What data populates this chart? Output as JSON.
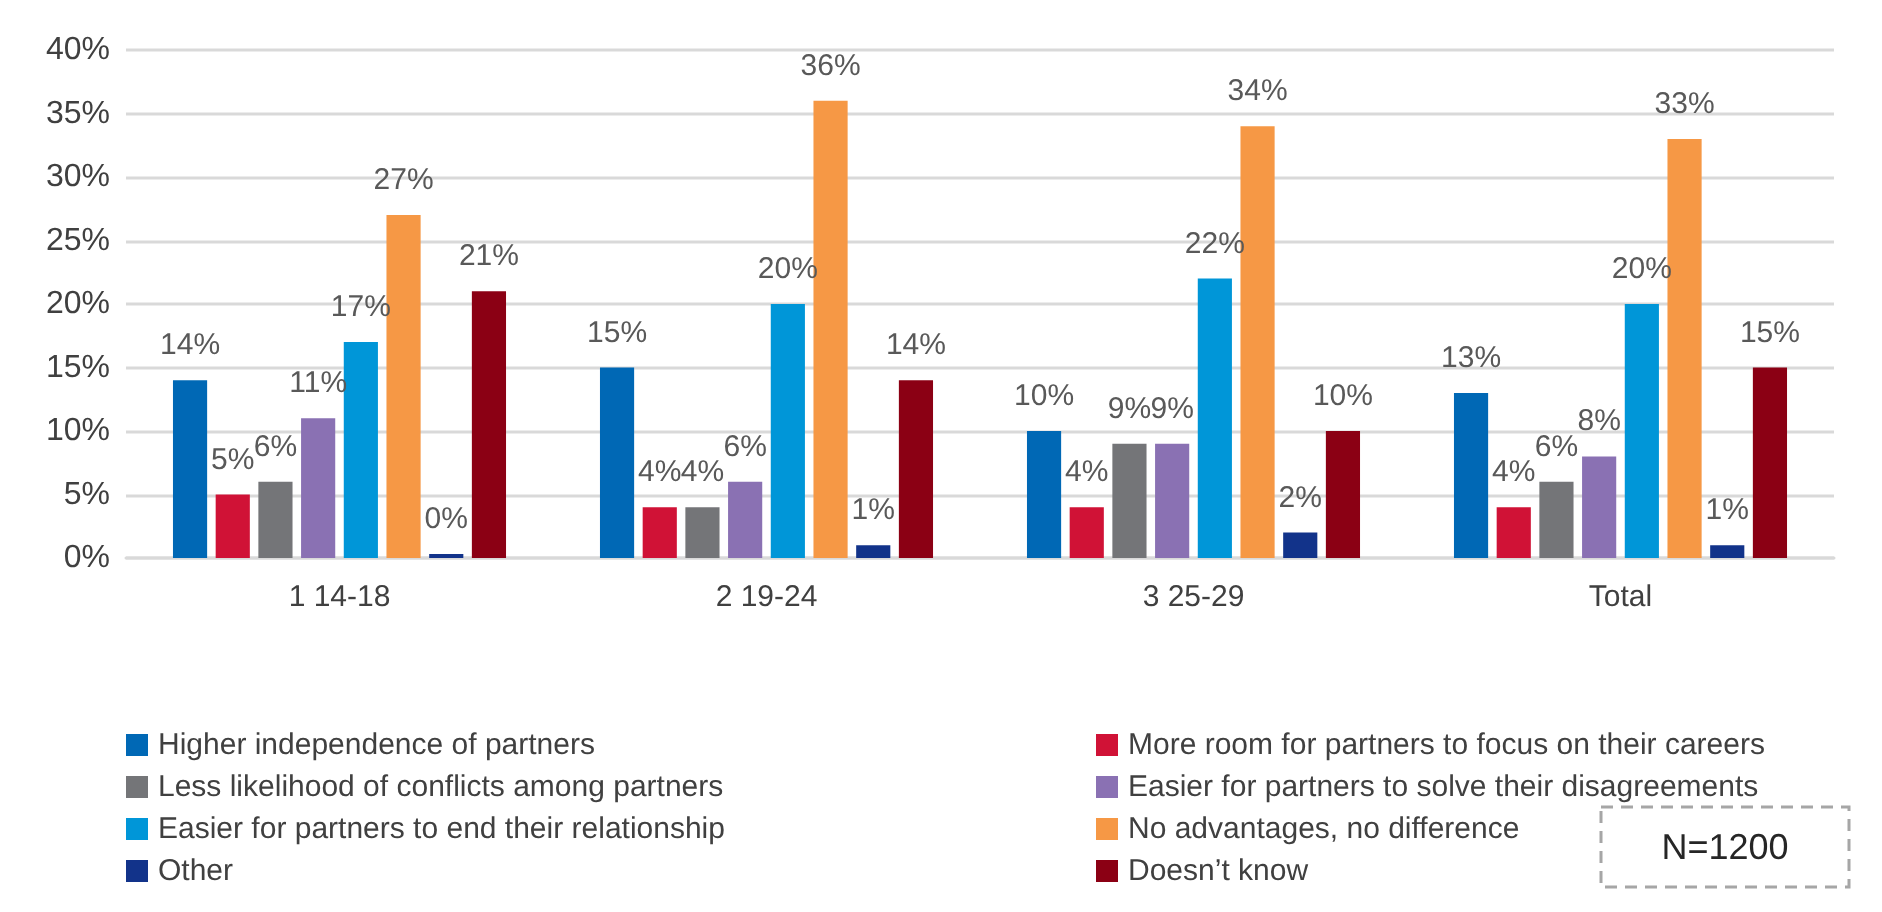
{
  "chart_data": {
    "type": "bar",
    "categories": [
      "1 14-18",
      "2 19-24",
      "3 25-29",
      "Total"
    ],
    "series": [
      {
        "name": "Higher independence of partners",
        "color": "#0068b5",
        "values": [
          14,
          15,
          10,
          13
        ],
        "value_labels": [
          "14%",
          "15%",
          "10%",
          "13%"
        ]
      },
      {
        "name": "More room for partners to focus on their careers",
        "color": "#d01236",
        "values": [
          5,
          4,
          4,
          4
        ],
        "value_labels": [
          "5%",
          "4%",
          "4%",
          "4%"
        ]
      },
      {
        "name": "Less likelihood of conflicts among partners",
        "color": "#747578",
        "values": [
          6,
          4,
          9,
          6
        ],
        "value_labels": [
          "6%",
          "4%",
          "9%",
          "6%"
        ]
      },
      {
        "name": "Easier for partners to solve their disagreements",
        "color": "#8a71b3",
        "values": [
          11,
          6,
          9,
          8
        ],
        "value_labels": [
          "11%",
          "6%",
          "9%",
          "8%"
        ]
      },
      {
        "name": "Easier for partners to end their relationship",
        "color": "#0096d8",
        "values": [
          17,
          20,
          22,
          20
        ],
        "value_labels": [
          "17%",
          "20%",
          "22%",
          "20%"
        ]
      },
      {
        "name": "No advantages, no difference",
        "color": "#f69845",
        "values": [
          27,
          36,
          34,
          33
        ],
        "value_labels": [
          "27%",
          "36%",
          "34%",
          "33%"
        ]
      },
      {
        "name": "Other",
        "color": "#12338a",
        "values": [
          0,
          1,
          2,
          1
        ],
        "value_labels": [
          "0%",
          "1%",
          "2%",
          "1%"
        ]
      },
      {
        "name": "Doesn’t know",
        "color": "#8b0014",
        "values": [
          21,
          14,
          10,
          15
        ],
        "value_labels": [
          "21%",
          "14%",
          "10%",
          "15%"
        ]
      }
    ],
    "ylim": [
      0,
      40
    ],
    "yticks": [
      {
        "value": 0,
        "label": "0%"
      },
      {
        "value": 5,
        "label": "5%"
      },
      {
        "value": 10,
        "label": "10%"
      },
      {
        "value": 15,
        "label": "15%"
      },
      {
        "value": 20,
        "label": "20%"
      },
      {
        "value": 25,
        "label": "25%"
      },
      {
        "value": 30,
        "label": "30%"
      },
      {
        "value": 35,
        "label": "35%"
      },
      {
        "value": 40,
        "label": "40%"
      }
    ],
    "grid": "y",
    "legend": "bottom",
    "annotations": [
      "N=1200"
    ]
  }
}
